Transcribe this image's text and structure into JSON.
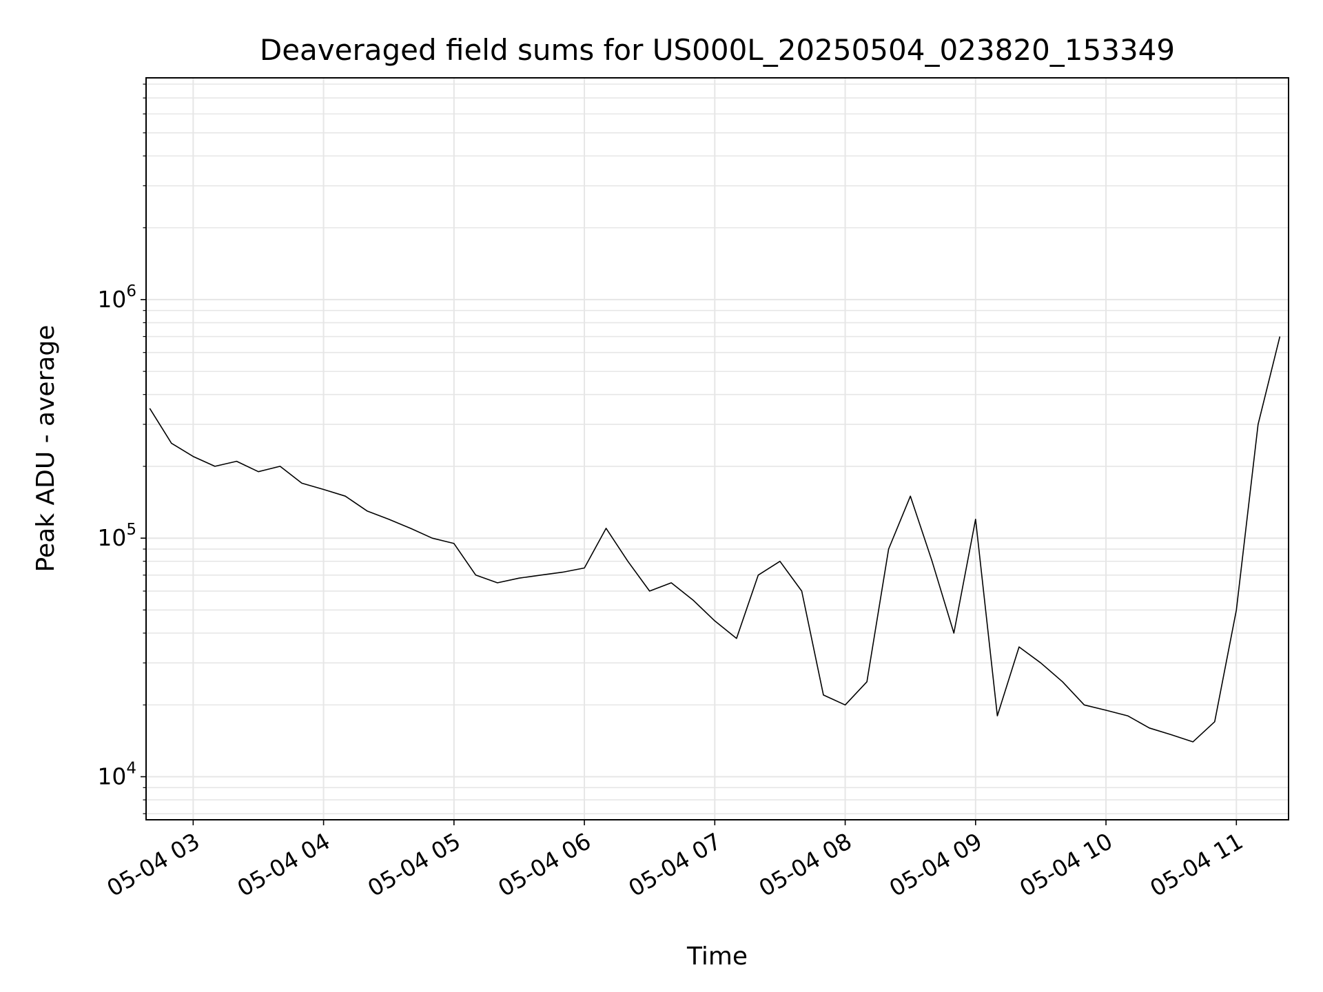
{
  "chart_data": {
    "type": "line",
    "title": "Deaveraged field sums for US000L_20250504_023820_153349",
    "xlabel": "Time",
    "ylabel": "Peak ADU - average",
    "y_scale": "log",
    "xlim": [
      "2025-05-04T02:38:20",
      "2025-05-04T11:24:00"
    ],
    "ylim": [
      6600,
      8500000
    ],
    "x_ticks": [
      "05-04 03",
      "05-04 04",
      "05-04 05",
      "05-04 06",
      "05-04 07",
      "05-04 08",
      "05-04 09",
      "05-04 10",
      "05-04 11"
    ],
    "y_ticks": [
      {
        "base": "10",
        "exp": "4",
        "value": 10000
      },
      {
        "base": "10",
        "exp": "5",
        "value": 100000
      },
      {
        "base": "10",
        "exp": "6",
        "value": 1000000
      }
    ],
    "grid": true,
    "line_color": "#000000",
    "series": [
      {
        "x": [
          "02:40",
          "02:50",
          "03:00",
          "03:10",
          "03:20",
          "03:30",
          "03:40",
          "03:50",
          "04:00",
          "04:10",
          "04:20",
          "04:30",
          "04:40",
          "04:50",
          "05:00",
          "05:10",
          "05:20",
          "05:30",
          "05:40",
          "05:50",
          "06:00",
          "06:10",
          "06:20",
          "06:30",
          "06:40",
          "06:50",
          "07:00",
          "07:10",
          "07:20",
          "07:30",
          "07:40",
          "07:50",
          "08:00",
          "08:10",
          "08:20",
          "08:30",
          "08:40",
          "08:50",
          "09:00",
          "09:10",
          "09:20",
          "09:30",
          "09:40",
          "09:50",
          "10:00",
          "10:10",
          "10:20",
          "10:30",
          "10:40",
          "10:50",
          "11:00",
          "11:10",
          "11:20"
        ],
        "values": [
          350000,
          250000,
          220000,
          200000,
          210000,
          190000,
          200000,
          170000,
          160000,
          150000,
          130000,
          120000,
          110000,
          100000,
          95000,
          70000,
          65000,
          68000,
          70000,
          72000,
          75000,
          110000,
          80000,
          60000,
          65000,
          55000,
          45000,
          38000,
          70000,
          80000,
          60000,
          22000,
          20000,
          25000,
          90000,
          150000,
          80000,
          40000,
          120000,
          18000,
          35000,
          30000,
          25000,
          20000,
          19000,
          18000,
          16000,
          15000,
          14000,
          17000,
          50000,
          300000,
          700000
        ]
      }
    ]
  }
}
